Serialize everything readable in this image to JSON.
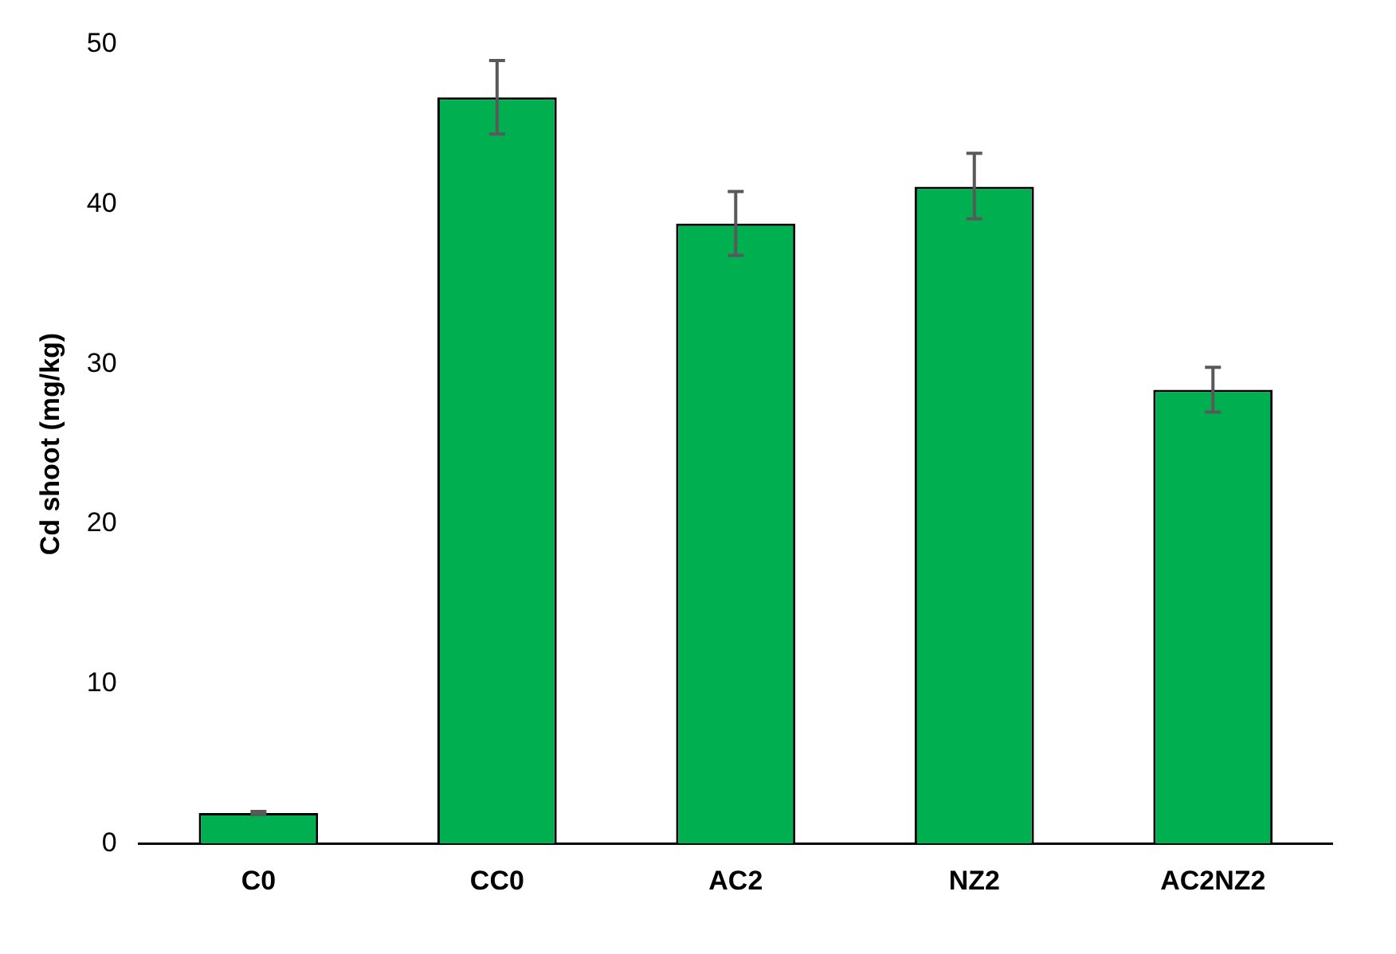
{
  "chart_data": {
    "type": "bar",
    "ylabel": "Cd shoot (mg/kg)",
    "categories": [
      "C0",
      "CC0",
      "AC2",
      "NZ2",
      "AC2NZ2"
    ],
    "values": [
      1.9,
      46.7,
      38.8,
      41.1,
      28.4
    ],
    "errors": [
      [
        1.8,
        2.0
      ],
      [
        44.4,
        49.0
      ],
      [
        36.8,
        40.8
      ],
      [
        39.1,
        43.2
      ],
      [
        27.0,
        29.8
      ]
    ],
    "color": "#00b050",
    "ylim": [
      0,
      50
    ],
    "yticks": [
      0,
      10,
      20,
      30,
      40,
      50
    ],
    "grid": false,
    "legend": false
  }
}
